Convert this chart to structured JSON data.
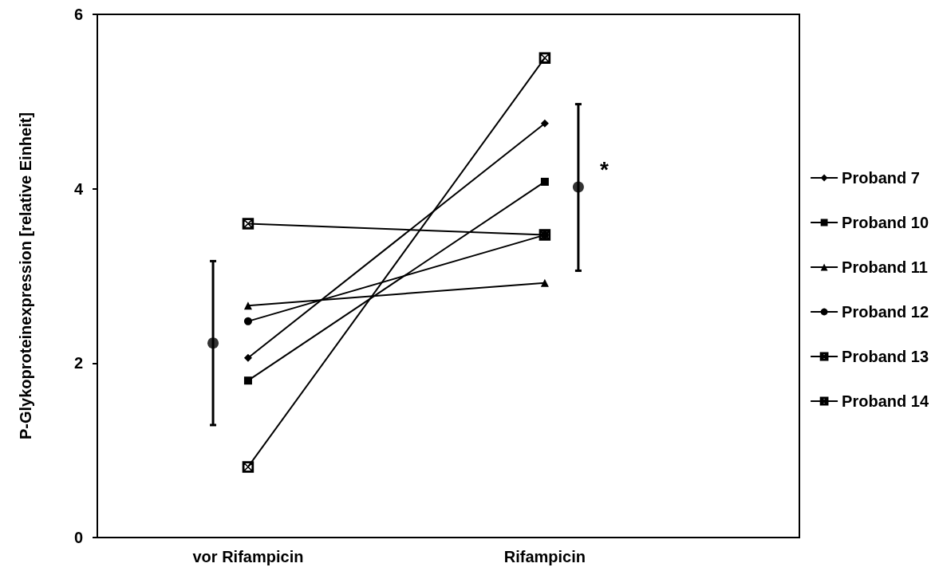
{
  "chart_data": {
    "type": "line",
    "ylabel": "P-Glykoproteinexpression [relative Einheit]",
    "categories": [
      "vor Rifampicin",
      "Rifampicin"
    ],
    "ylim": [
      0,
      6
    ],
    "yticks": [
      0,
      2,
      4,
      6
    ],
    "grid": false,
    "legend": "right",
    "series": [
      {
        "name": "Proband 7",
        "color": "#000000",
        "marker": "diamond",
        "values": [
          2.06,
          4.75
        ]
      },
      {
        "name": "Proband 10",
        "color": "#000000",
        "marker": "square",
        "values": [
          1.8,
          4.08
        ]
      },
      {
        "name": "Proband 11",
        "color": "#000000",
        "marker": "triangle",
        "values": [
          2.66,
          2.92
        ]
      },
      {
        "name": "Proband 12",
        "color": "#000000",
        "marker": "circle",
        "values": [
          2.48,
          3.47
        ]
      },
      {
        "name": "Proband 13",
        "color": "#000000",
        "marker": "cross",
        "values": [
          3.6,
          3.47
        ]
      },
      {
        "name": "Proband 14",
        "color": "#000000",
        "marker": "cross",
        "values": [
          0.81,
          5.5
        ]
      },
      {
        "type": "scatter",
        "color": "#000000",
        "marker": "circle",
        "x": [
          "vor Rifampicin",
          "Rifampicin"
        ],
        "values": [
          2.23,
          4.02
        ],
        "errors": [
          [
            1.29,
            3.17
          ],
          [
            3.06,
            4.97
          ]
        ]
      }
    ],
    "annotations": [
      "*"
    ]
  }
}
